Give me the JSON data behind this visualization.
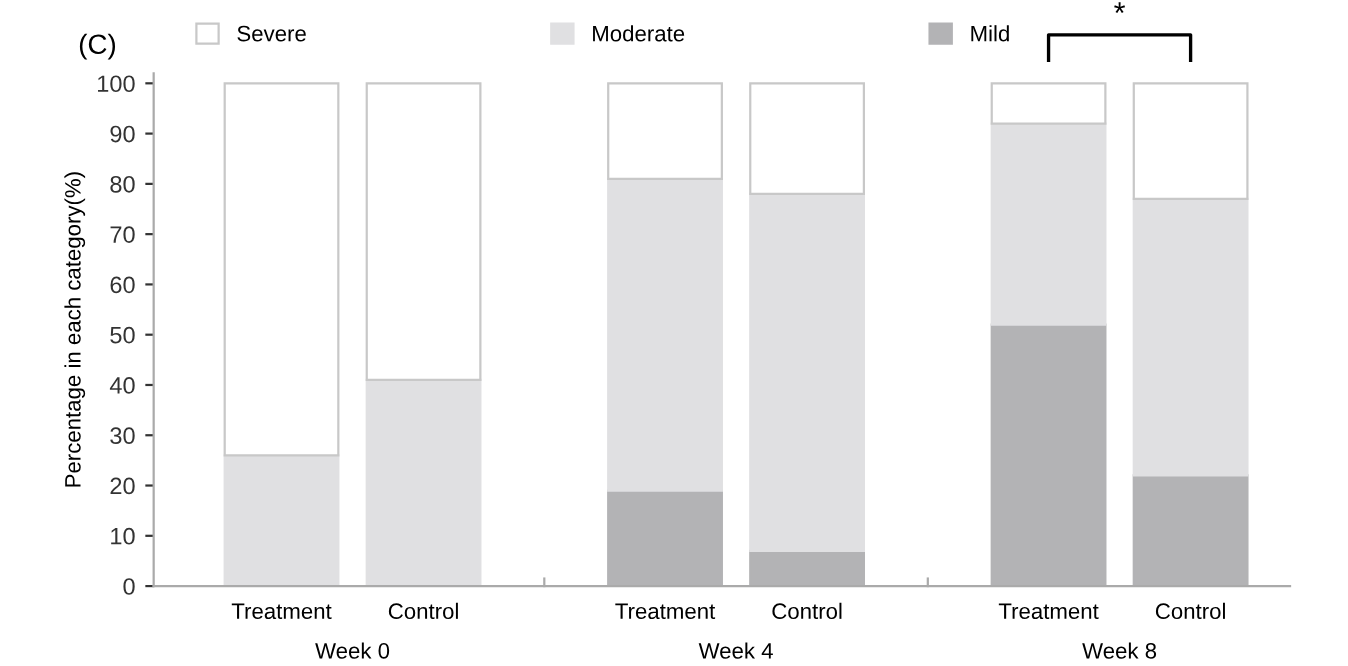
{
  "chart_data": {
    "type": "bar",
    "stacked": true,
    "categories": [
      "Treatment",
      "Control",
      "Treatment",
      "Control",
      "Treatment",
      "Control"
    ],
    "series": [
      {
        "name": "Mild",
        "color": "#b3b3b5",
        "values": [
          0,
          0,
          19,
          7,
          52,
          22
        ]
      },
      {
        "name": "Moderate",
        "color": "#e0e0e2",
        "values": [
          26,
          41,
          62,
          71,
          40,
          55
        ]
      },
      {
        "name": "Severe",
        "color": "#ffffff",
        "values": [
          74,
          59,
          19,
          22,
          8,
          23
        ]
      }
    ],
    "ylabel": "Percentage in each category(%)",
    "ylim": [
      0,
      102
    ],
    "yticks": [
      0,
      10,
      20,
      30,
      40,
      50,
      60,
      70,
      80,
      90,
      100
    ],
    "legend": "top",
    "grid": false,
    "annotations": [
      "(C)",
      "Week 0",
      "Week 4",
      "Week 8",
      "*"
    ]
  }
}
